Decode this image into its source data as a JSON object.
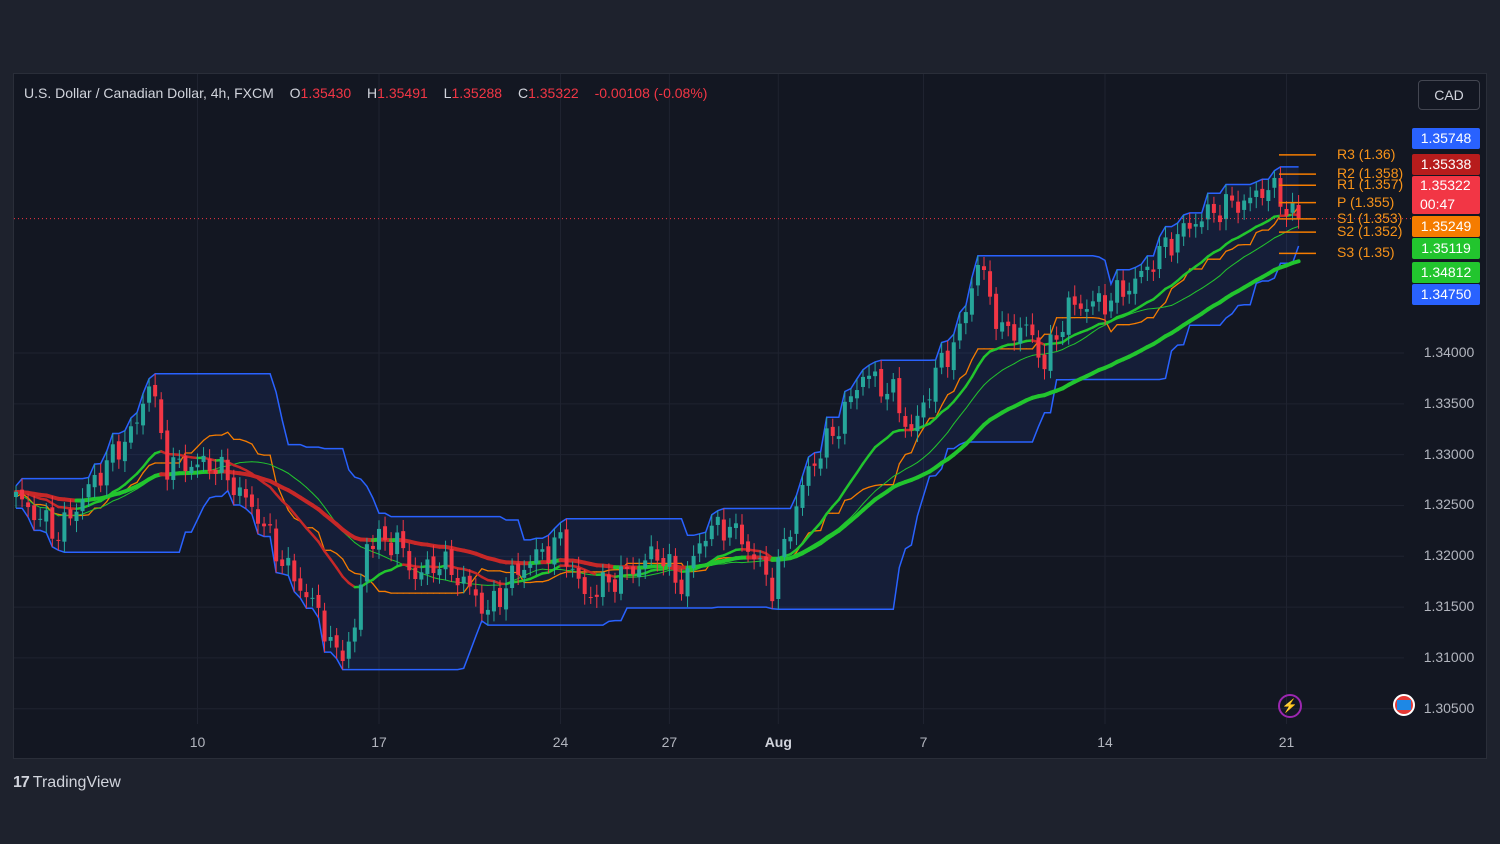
{
  "header": {
    "symbol": "U.S. Dollar / Canadian Dollar, 4h, FXCM",
    "open_label": "O",
    "open": "1.35430",
    "high_label": "H",
    "high": "1.35491",
    "low_label": "L",
    "low": "1.35288",
    "close_label": "C",
    "close": "1.35322",
    "change": "-0.00108 (-0.08%)"
  },
  "currency": "CAD",
  "price_tags": [
    {
      "value": "1.35748",
      "color": "#2962ff"
    },
    {
      "value": "1.35338",
      "color": "#b71c1c"
    },
    {
      "value": "1.35322",
      "color": "#f23645",
      "countdown": "00:47"
    },
    {
      "value": "1.35249",
      "color": "#f57c00"
    },
    {
      "value": "1.35119",
      "color": "#22c52e"
    },
    {
      "value": "1.34812",
      "color": "#22c52e"
    },
    {
      "value": "1.34750",
      "color": "#2962ff"
    }
  ],
  "pivots": [
    {
      "label": "R3 (1.36)",
      "value": 1.3595
    },
    {
      "label": "R2 (1.358)",
      "value": 1.3576
    },
    {
      "label": "R1 (1.357)",
      "value": 1.3565
    },
    {
      "label": "P (1.355)",
      "value": 1.3548
    },
    {
      "label": "S1 (1.353)",
      "value": 1.3532
    },
    {
      "label": "S2 (1.352)",
      "value": 1.3519
    },
    {
      "label": "S3 (1.35)",
      "value": 1.3498
    }
  ],
  "branding": {
    "name": "TradingView"
  },
  "colors": {
    "up": "#26a69a",
    "down": "#f23645",
    "channel": "#2962ff",
    "ma_green": "#22c52e",
    "ma_red": "#c62828",
    "ma_orange": "#f57c00"
  },
  "chart_data": {
    "type": "candlestick",
    "interval": "4h",
    "ylim": [
      1.3035,
      1.3645
    ],
    "y_ticks": [
      "1.34000",
      "1.33500",
      "1.33000",
      "1.32500",
      "1.32000",
      "1.31500",
      "1.31000",
      "1.30500"
    ],
    "y_tick_values": [
      1.34,
      1.335,
      1.33,
      1.325,
      1.32,
      1.315,
      1.31,
      1.305
    ],
    "x_ticks": [
      {
        "label": "10",
        "index": 30
      },
      {
        "label": "17",
        "index": 60
      },
      {
        "label": "24",
        "index": 90
      },
      {
        "label": "27",
        "index": 108
      },
      {
        "label": "Aug",
        "index": 126,
        "bold": true
      },
      {
        "label": "7",
        "index": 150
      },
      {
        "label": "14",
        "index": 180
      },
      {
        "label": "21",
        "index": 210
      }
    ],
    "last_close": 1.35322,
    "close_anchors": [
      [
        0,
        1.3258
      ],
      [
        7,
        1.3222
      ],
      [
        13,
        1.3275
      ],
      [
        20,
        1.333
      ],
      [
        22,
        1.3375
      ],
      [
        25,
        1.329
      ],
      [
        33,
        1.329
      ],
      [
        36,
        1.327
      ],
      [
        40,
        1.324
      ],
      [
        44,
        1.3195
      ],
      [
        50,
        1.3145
      ],
      [
        53,
        1.31
      ],
      [
        56,
        1.3125
      ],
      [
        58,
        1.3215
      ],
      [
        63,
        1.3215
      ],
      [
        66,
        1.318
      ],
      [
        70,
        1.3195
      ],
      [
        74,
        1.3175
      ],
      [
        78,
        1.3145
      ],
      [
        82,
        1.318
      ],
      [
        86,
        1.32
      ],
      [
        90,
        1.3215
      ],
      [
        94,
        1.316
      ],
      [
        98,
        1.3175
      ],
      [
        103,
        1.319
      ],
      [
        106,
        1.3205
      ],
      [
        110,
        1.317
      ],
      [
        114,
        1.3225
      ],
      [
        118,
        1.323
      ],
      [
        122,
        1.32
      ],
      [
        125,
        1.317
      ],
      [
        128,
        1.323
      ],
      [
        131,
        1.3285
      ],
      [
        136,
        1.333
      ],
      [
        140,
        1.338
      ],
      [
        145,
        1.336
      ],
      [
        148,
        1.332
      ],
      [
        152,
        1.338
      ],
      [
        156,
        1.342
      ],
      [
        159,
        1.349
      ],
      [
        163,
        1.342
      ],
      [
        167,
        1.3425
      ],
      [
        170,
        1.339
      ],
      [
        174,
        1.3445
      ],
      [
        180,
        1.345
      ],
      [
        185,
        1.347
      ],
      [
        190,
        1.3505
      ],
      [
        195,
        1.353
      ],
      [
        200,
        1.3545
      ],
      [
        204,
        1.355
      ],
      [
        207,
        1.3565
      ],
      [
        209,
        1.355
      ],
      [
        212,
        1.3532
      ]
    ]
  }
}
